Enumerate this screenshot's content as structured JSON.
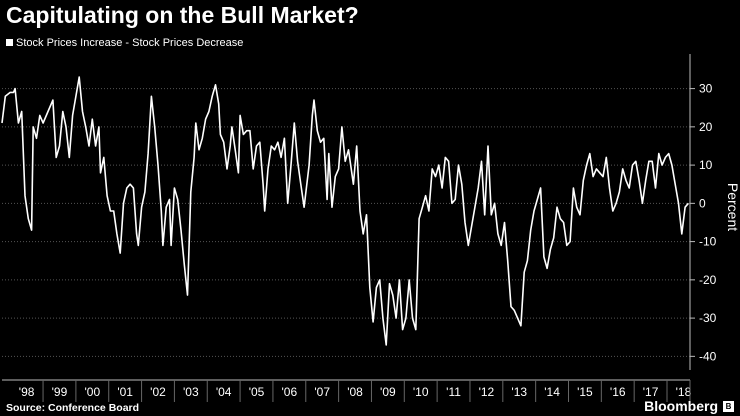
{
  "chart_data": {
    "type": "line",
    "title": "Capitulating on the Bull Market?",
    "ylabel": "Percent",
    "xlabel": "",
    "ylim": [
      -42,
      38
    ],
    "y_ticks": [
      30,
      20,
      10,
      0,
      -10,
      -20,
      -30,
      -40
    ],
    "x_tick_labels": [
      "'98",
      "'99",
      "'00",
      "'01",
      "'02",
      "'03",
      "'04",
      "'05",
      "'06",
      "'07",
      "'08",
      "'09",
      "'10",
      "'11",
      "'12",
      "'13",
      "'14",
      "'15",
      "'16",
      "'17",
      "'18"
    ],
    "x_range": [
      1997.75,
      2018.7
    ],
    "series": [
      {
        "name": "Stock Prices Increase - Stock Prices Decrease",
        "color": "#ffffff",
        "points": [
          [
            1997.75,
            21
          ],
          [
            1997.85,
            28
          ],
          [
            1998.0,
            29
          ],
          [
            1998.1,
            29
          ],
          [
            1998.15,
            30
          ],
          [
            1998.25,
            21
          ],
          [
            1998.35,
            24
          ],
          [
            1998.45,
            2
          ],
          [
            1998.55,
            -4
          ],
          [
            1998.65,
            -7
          ],
          [
            1998.7,
            20
          ],
          [
            1998.8,
            17
          ],
          [
            1998.9,
            23
          ],
          [
            1999.0,
            21
          ],
          [
            1999.15,
            24
          ],
          [
            1999.3,
            27
          ],
          [
            1999.4,
            12
          ],
          [
            1999.5,
            15
          ],
          [
            1999.6,
            24
          ],
          [
            1999.7,
            20
          ],
          [
            1999.8,
            12
          ],
          [
            1999.9,
            23
          ],
          [
            2000.0,
            28
          ],
          [
            2000.1,
            33
          ],
          [
            2000.2,
            24
          ],
          [
            2000.3,
            20
          ],
          [
            2000.4,
            15
          ],
          [
            2000.5,
            22
          ],
          [
            2000.6,
            15
          ],
          [
            2000.7,
            20
          ],
          [
            2000.75,
            8
          ],
          [
            2000.85,
            12
          ],
          [
            2000.95,
            2
          ],
          [
            2001.05,
            -2
          ],
          [
            2001.15,
            -2
          ],
          [
            2001.25,
            -8
          ],
          [
            2001.35,
            -13
          ],
          [
            2001.45,
            0
          ],
          [
            2001.55,
            4
          ],
          [
            2001.65,
            5
          ],
          [
            2001.75,
            4
          ],
          [
            2001.85,
            -8
          ],
          [
            2001.9,
            -11
          ],
          [
            2002.0,
            -1
          ],
          [
            2002.1,
            3
          ],
          [
            2002.2,
            13
          ],
          [
            2002.3,
            28
          ],
          [
            2002.4,
            20
          ],
          [
            2002.5,
            10
          ],
          [
            2002.6,
            -2
          ],
          [
            2002.65,
            -11
          ],
          [
            2002.75,
            -1
          ],
          [
            2002.85,
            1
          ],
          [
            2002.9,
            -11
          ],
          [
            2003.0,
            4
          ],
          [
            2003.1,
            1
          ],
          [
            2003.2,
            -7
          ],
          [
            2003.3,
            -16
          ],
          [
            2003.4,
            -24
          ],
          [
            2003.5,
            3
          ],
          [
            2003.6,
            12
          ],
          [
            2003.65,
            21
          ],
          [
            2003.75,
            14
          ],
          [
            2003.85,
            17
          ],
          [
            2003.95,
            22
          ],
          [
            2004.05,
            24
          ],
          [
            2004.15,
            28
          ],
          [
            2004.25,
            31
          ],
          [
            2004.35,
            26
          ],
          [
            2004.4,
            18
          ],
          [
            2004.5,
            16
          ],
          [
            2004.6,
            9
          ],
          [
            2004.7,
            15
          ],
          [
            2004.75,
            20
          ],
          [
            2004.85,
            14
          ],
          [
            2004.95,
            8
          ],
          [
            2005.0,
            23
          ],
          [
            2005.1,
            18
          ],
          [
            2005.2,
            19
          ],
          [
            2005.3,
            19
          ],
          [
            2005.4,
            9
          ],
          [
            2005.5,
            15
          ],
          [
            2005.6,
            16
          ],
          [
            2005.7,
            5
          ],
          [
            2005.75,
            -2
          ],
          [
            2005.85,
            9
          ],
          [
            2005.95,
            15
          ],
          [
            2006.05,
            14
          ],
          [
            2006.15,
            16
          ],
          [
            2006.25,
            12
          ],
          [
            2006.35,
            17
          ],
          [
            2006.45,
            0
          ],
          [
            2006.55,
            10
          ],
          [
            2006.65,
            21
          ],
          [
            2006.75,
            11
          ],
          [
            2006.85,
            5
          ],
          [
            2006.95,
            -1
          ],
          [
            2007.1,
            10
          ],
          [
            2007.2,
            23
          ],
          [
            2007.25,
            27
          ],
          [
            2007.35,
            19
          ],
          [
            2007.45,
            16
          ],
          [
            2007.55,
            17
          ],
          [
            2007.65,
            1
          ],
          [
            2007.7,
            13
          ],
          [
            2007.8,
            -1
          ],
          [
            2007.9,
            7
          ],
          [
            2008.0,
            9
          ],
          [
            2008.1,
            20
          ],
          [
            2008.2,
            11
          ],
          [
            2008.3,
            14
          ],
          [
            2008.45,
            5
          ],
          [
            2008.55,
            15
          ],
          [
            2008.65,
            -2
          ],
          [
            2008.75,
            -8
          ],
          [
            2008.85,
            -3
          ],
          [
            2008.95,
            -22
          ],
          [
            2009.05,
            -31
          ],
          [
            2009.15,
            -22
          ],
          [
            2009.25,
            -20
          ],
          [
            2009.35,
            -30
          ],
          [
            2009.45,
            -37
          ],
          [
            2009.55,
            -21
          ],
          [
            2009.65,
            -24
          ],
          [
            2009.75,
            -30
          ],
          [
            2009.85,
            -20
          ],
          [
            2009.95,
            -33
          ],
          [
            2010.05,
            -30
          ],
          [
            2010.15,
            -20
          ],
          [
            2010.25,
            -30
          ],
          [
            2010.35,
            -33
          ],
          [
            2010.45,
            -4
          ],
          [
            2010.55,
            -1
          ],
          [
            2010.65,
            2
          ],
          [
            2010.75,
            -2
          ],
          [
            2010.85,
            9
          ],
          [
            2010.95,
            7
          ],
          [
            2011.05,
            10
          ],
          [
            2011.15,
            4
          ],
          [
            2011.25,
            12
          ],
          [
            2011.35,
            11
          ],
          [
            2011.45,
            0
          ],
          [
            2011.55,
            1
          ],
          [
            2011.65,
            10
          ],
          [
            2011.75,
            5
          ],
          [
            2011.85,
            -5
          ],
          [
            2011.95,
            -11
          ],
          [
            2012.05,
            -6
          ],
          [
            2012.15,
            -1
          ],
          [
            2012.25,
            4
          ],
          [
            2012.35,
            11
          ],
          [
            2012.45,
            -3
          ],
          [
            2012.55,
            15
          ],
          [
            2012.65,
            -3
          ],
          [
            2012.75,
            0
          ],
          [
            2012.85,
            -8
          ],
          [
            2012.95,
            -11
          ],
          [
            2013.05,
            -5
          ],
          [
            2013.15,
            -15
          ],
          [
            2013.25,
            -27
          ],
          [
            2013.35,
            -28
          ],
          [
            2013.45,
            -30
          ],
          [
            2013.55,
            -32
          ],
          [
            2013.65,
            -18
          ],
          [
            2013.75,
            -15
          ],
          [
            2013.85,
            -7
          ],
          [
            2013.95,
            -2
          ],
          [
            2014.05,
            1
          ],
          [
            2014.15,
            4
          ],
          [
            2014.25,
            -14
          ],
          [
            2014.35,
            -17
          ],
          [
            2014.45,
            -12
          ],
          [
            2014.55,
            -9
          ],
          [
            2014.65,
            -1
          ],
          [
            2014.75,
            -4
          ],
          [
            2014.85,
            -5
          ],
          [
            2014.95,
            -11
          ],
          [
            2015.05,
            -10
          ],
          [
            2015.15,
            4
          ],
          [
            2015.25,
            -1
          ],
          [
            2015.35,
            -3
          ],
          [
            2015.45,
            6
          ],
          [
            2015.55,
            10
          ],
          [
            2015.65,
            13
          ],
          [
            2015.75,
            7
          ],
          [
            2015.85,
            9
          ],
          [
            2015.95,
            8
          ],
          [
            2016.05,
            7
          ],
          [
            2016.15,
            12
          ],
          [
            2016.25,
            4
          ],
          [
            2016.35,
            -2
          ],
          [
            2016.45,
            0
          ],
          [
            2016.55,
            3
          ],
          [
            2016.65,
            9
          ],
          [
            2016.75,
            6
          ],
          [
            2016.85,
            4
          ],
          [
            2016.95,
            10
          ],
          [
            2017.05,
            11
          ],
          [
            2017.15,
            6
          ],
          [
            2017.25,
            0
          ],
          [
            2017.35,
            6
          ],
          [
            2017.45,
            11
          ],
          [
            2017.55,
            11
          ],
          [
            2017.65,
            4
          ],
          [
            2017.75,
            13
          ],
          [
            2017.85,
            10
          ],
          [
            2017.95,
            12
          ],
          [
            2018.05,
            13
          ],
          [
            2018.15,
            10
          ],
          [
            2018.25,
            5
          ],
          [
            2018.35,
            0
          ],
          [
            2018.45,
            -8
          ],
          [
            2018.55,
            -1
          ],
          [
            2018.65,
            0
          ]
        ]
      }
    ]
  },
  "source": "Source: Conference Board",
  "brand": "Bloomberg"
}
